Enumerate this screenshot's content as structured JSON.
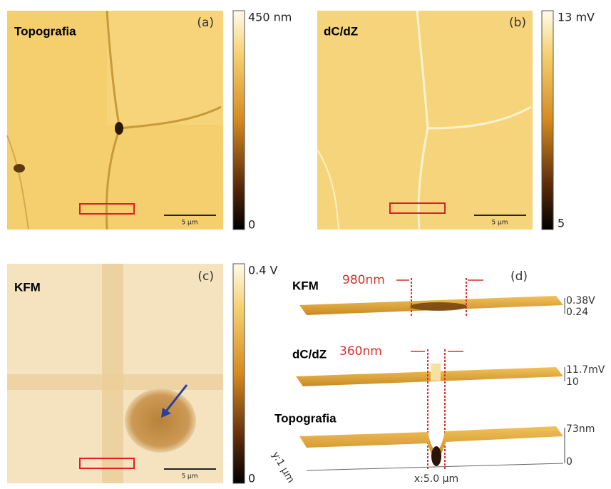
{
  "panels": {
    "a": {
      "tag": "(a)",
      "label": "Topografia",
      "scale_max": "450 nm",
      "scale_min": "0",
      "scale_bar": "5 µm"
    },
    "b": {
      "tag": "(b)",
      "label": "dC/dZ",
      "scale_max": "13 mV",
      "scale_min": "5",
      "scale_bar": "5 µm"
    },
    "c": {
      "tag": "(c)",
      "label": "KFM",
      "scale_max": "0.4 V",
      "scale_min": "0",
      "scale_bar": "5 µm"
    },
    "d": {
      "tag": "(d)",
      "profiles": [
        {
          "label": "KFM",
          "width": "980nm",
          "top": "0.38V",
          "bottom": "0.24"
        },
        {
          "label": "dC/dZ",
          "width": "360nm",
          "top": "11.7mV",
          "bottom": "10"
        },
        {
          "label": "Topografia",
          "top": "73nm",
          "bottom": "0"
        }
      ],
      "x_axis": "x:5.0 µm",
      "y_axis": "y:1 µm"
    }
  }
}
